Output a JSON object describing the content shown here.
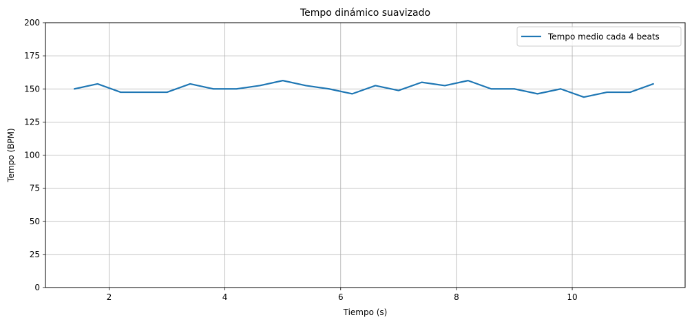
{
  "chart_data": {
    "type": "line",
    "title": "Tempo dinámico suavizado",
    "xlabel": "Tiempo (s)",
    "ylabel": "Tempo (BPM)",
    "xlim": [
      0.9,
      11.95
    ],
    "ylim": [
      0,
      200
    ],
    "xticks": [
      2,
      4,
      6,
      8,
      10
    ],
    "yticks": [
      0,
      25,
      50,
      75,
      100,
      125,
      150,
      175,
      200
    ],
    "grid": true,
    "legend_position": "top-right",
    "series": [
      {
        "name": "Tempo medio cada 4 beats",
        "color": "#1f77b4",
        "x": [
          1.4,
          1.8,
          2.2,
          2.6,
          3.0,
          3.4,
          3.8,
          4.2,
          4.6,
          5.0,
          5.4,
          5.8,
          6.2,
          6.6,
          7.0,
          7.4,
          7.8,
          8.2,
          8.6,
          9.0,
          9.4,
          9.8,
          10.2,
          10.6,
          11.0,
          11.4
        ],
        "y": [
          150,
          153.8,
          147.5,
          147.5,
          147.5,
          153.8,
          150,
          150,
          152.5,
          156.3,
          152.5,
          150,
          146.3,
          152.5,
          148.8,
          155,
          152.5,
          156.3,
          150,
          150,
          146.3,
          150,
          143.8,
          147.5,
          147.5,
          153.8
        ]
      }
    ]
  }
}
